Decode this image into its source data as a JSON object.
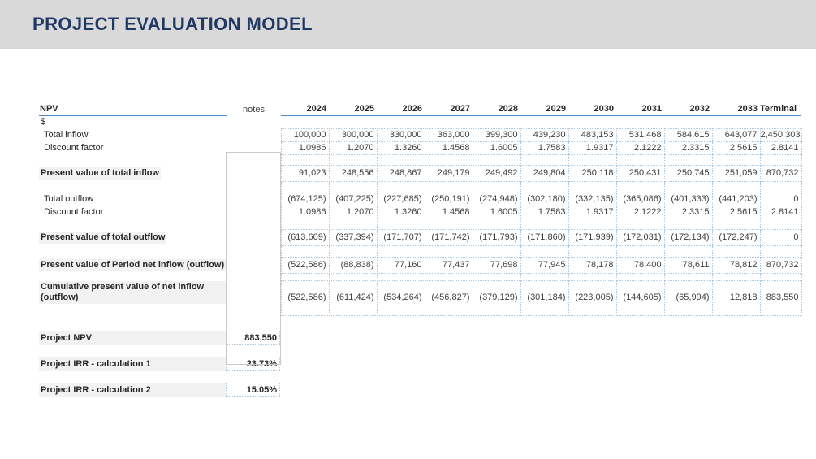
{
  "header": {
    "title": "PROJECT EVALUATION MODEL"
  },
  "colors": {
    "title_text": "#1f3864",
    "title_bar_bg": "#d9d9d9",
    "accent_rule": "#4e8ac4",
    "cell_border": "#aacbe8",
    "subtotal_bg": "#f2f2f2"
  },
  "table": {
    "title": "NPV",
    "notes_label": "notes",
    "currency_label": "$",
    "columns": [
      "2024",
      "2025",
      "2026",
      "2027",
      "2028",
      "2029",
      "2030",
      "2031",
      "2032",
      "2033",
      "Terminal"
    ],
    "rows": {
      "total_inflow": {
        "label": "Total inflow",
        "values": [
          "100,000",
          "300,000",
          "330,000",
          "363,000",
          "399,300",
          "439,230",
          "483,153",
          "531,468",
          "584,615",
          "643,077",
          "2,450,303"
        ]
      },
      "discount_factor_1": {
        "label": "Discount factor",
        "values": [
          "1.0986",
          "1.2070",
          "1.3260",
          "1.4568",
          "1.6005",
          "1.7583",
          "1.9317",
          "2.1222",
          "2.3315",
          "2.5615",
          "2.8141"
        ]
      },
      "pv_inflow": {
        "label": "Present value of total inflow",
        "values": [
          "91,023",
          "248,556",
          "248,867",
          "249,179",
          "249,492",
          "249,804",
          "250,118",
          "250,431",
          "250,745",
          "251,059",
          "870,732"
        ]
      },
      "total_outflow": {
        "label": "Total outflow",
        "values": [
          "(674,125)",
          "(407,225)",
          "(227,685)",
          "(250,191)",
          "(274,948)",
          "(302,180)",
          "(332,135)",
          "(365,086)",
          "(401,333)",
          "(441,203)",
          "0"
        ]
      },
      "discount_factor_2": {
        "label": "Discount factor",
        "values": [
          "1.0986",
          "1.2070",
          "1.3260",
          "1.4568",
          "1.6005",
          "1.7583",
          "1.9317",
          "2.1222",
          "2.3315",
          "2.5615",
          "2.8141"
        ]
      },
      "pv_outflow": {
        "label": "Present value of total outflow",
        "values": [
          "(613,609)",
          "(337,394)",
          "(171,707)",
          "(171,742)",
          "(171,793)",
          "(171,860)",
          "(171,939)",
          "(172,031)",
          "(172,134)",
          "(172,247)",
          "0"
        ]
      },
      "pv_net": {
        "label": "Present value of Period net inflow (outflow)",
        "values": [
          "(522,586)",
          "(88,838)",
          "77,160",
          "77,437",
          "77,698",
          "77,945",
          "78,178",
          "78,400",
          "78,611",
          "78,812",
          "870,732"
        ]
      },
      "cumulative": {
        "label": "Cumulative present value of net inflow (outflow)",
        "values": [
          "(522,586)",
          "(611,424)",
          "(534,264)",
          "(456,827)",
          "(379,129)",
          "(301,184)",
          "(223,005)",
          "(144,605)",
          "(65,994)",
          "12,818",
          "883,550"
        ]
      }
    }
  },
  "summary": [
    {
      "label": "Project NPV",
      "value": "883,550"
    },
    {
      "label": "Project IRR - calculation 1",
      "value": "23.73%"
    },
    {
      "label": "Project IRR - calculation 2",
      "value": "15.05%"
    }
  ]
}
